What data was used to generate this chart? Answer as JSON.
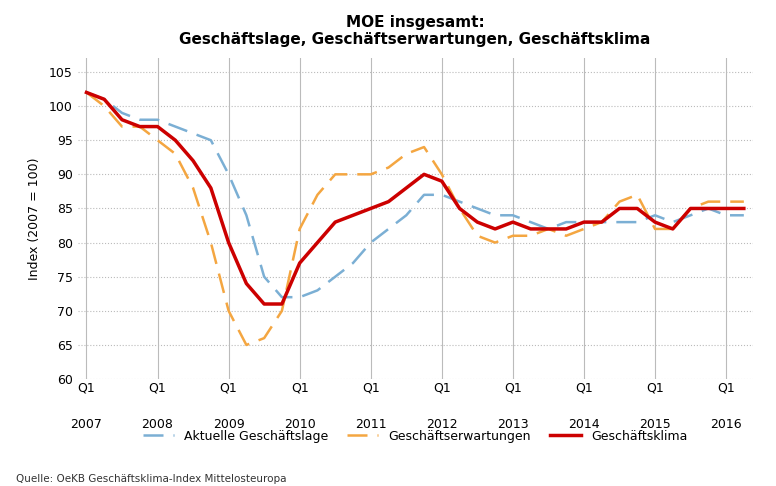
{
  "title": "MOE insgesamt:\nGeschäftslage, Geschäftserwartungen, Geschäftsklima",
  "ylabel": "Index (2007 = 100)",
  "source": "Quelle: OeKB Geschäftsklima-Index Mittelosteuropa",
  "ylim": [
    60,
    107
  ],
  "yticks": [
    60,
    65,
    70,
    75,
    80,
    85,
    90,
    95,
    100,
    105
  ],
  "background_color": "#ffffff",
  "grid_color": "#bbbbbb",
  "lage_color": "#7bafd4",
  "erwartungen_color": "#f4a641",
  "klima_color": "#cc0000",
  "lage_label": "Aktuelle Geschäftslage",
  "erwartungen_label": "Geschäftserwartungen",
  "klima_label": "Geschäftsklima",
  "x": [
    0,
    1,
    2,
    3,
    4,
    5,
    6,
    7,
    8,
    9,
    10,
    11,
    12,
    13,
    14,
    15,
    16,
    17,
    18,
    19,
    20,
    21,
    22,
    23,
    24,
    25,
    26,
    27,
    28,
    29,
    30,
    31,
    32,
    33,
    34,
    35,
    36,
    37
  ],
  "lage": [
    102,
    101,
    99,
    98,
    98,
    97,
    96,
    95,
    90,
    84,
    75,
    72,
    72,
    73,
    75,
    77,
    80,
    82,
    84,
    87,
    87,
    86,
    85,
    84,
    84,
    83,
    82,
    83,
    83,
    83,
    83,
    83,
    84,
    83,
    84,
    85,
    84,
    84
  ],
  "erwartungen": [
    102,
    100,
    97,
    97,
    95,
    93,
    88,
    80,
    70,
    65,
    66,
    70,
    82,
    87,
    90,
    90,
    90,
    91,
    93,
    94,
    90,
    85,
    81,
    80,
    81,
    81,
    82,
    81,
    82,
    83,
    86,
    87,
    82,
    82,
    85,
    86,
    86,
    86
  ],
  "klima": [
    102,
    101,
    98,
    97,
    97,
    95,
    92,
    88,
    80,
    74,
    71,
    71,
    77,
    80,
    83,
    84,
    85,
    86,
    88,
    90,
    89,
    85,
    83,
    82,
    83,
    82,
    82,
    82,
    83,
    83,
    85,
    85,
    83,
    82,
    85,
    85,
    85,
    85
  ],
  "year_positions": [
    0,
    4,
    8,
    12,
    16,
    20,
    24,
    28,
    32,
    36
  ],
  "year_labels": [
    "2007",
    "2008",
    "2009",
    "2010",
    "2011",
    "2012",
    "2013",
    "2014",
    "2015",
    "2016"
  ],
  "q1_positions": [
    0,
    4,
    8,
    12,
    16,
    20,
    24,
    28,
    32,
    36
  ],
  "q1_label": "Q1",
  "vgrid_positions": [
    0,
    4,
    8,
    12,
    16,
    20,
    24,
    28,
    32,
    36
  ]
}
